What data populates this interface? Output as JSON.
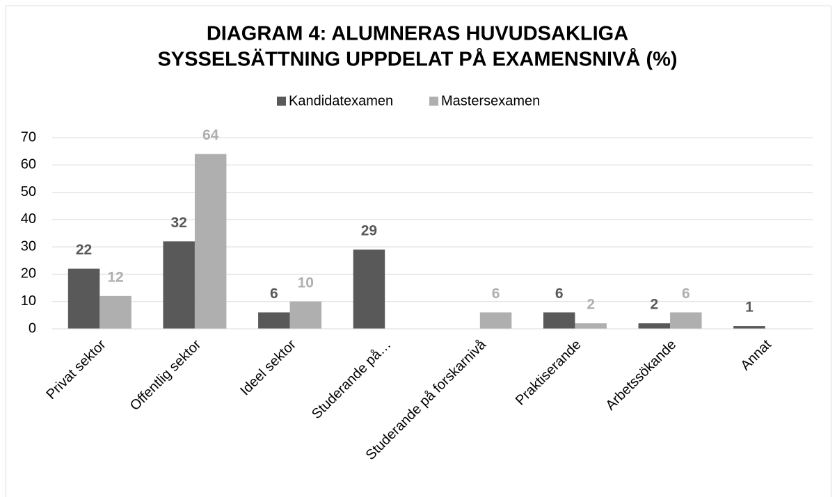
{
  "chart_data": {
    "type": "bar",
    "title": [
      "DIAGRAM 4: ALUMNERAS HUVUDSAKLIGA",
      "SYSSELSÄTTNING UPPDELAT PÅ EXAMENSNIVÅ (%)"
    ],
    "categories": [
      "Privat sektor",
      "Offentlig sektor",
      "Ideel sektor",
      "Studerande på…",
      "Studerande på forskarnivå",
      "Praktiserande",
      "Arbetssökande",
      "Annat"
    ],
    "series": [
      {
        "name": "Kandidatexamen",
        "color": "#595959",
        "values": [
          22,
          32,
          6,
          29,
          null,
          6,
          2,
          1
        ]
      },
      {
        "name": "Mastersexamen",
        "color": "#afafaf",
        "values": [
          12,
          64,
          10,
          null,
          6,
          2,
          6,
          null
        ]
      }
    ],
    "ylim": [
      0,
      70
    ],
    "yticks": [
      0,
      10,
      20,
      30,
      40,
      50,
      60,
      70
    ],
    "grid": true,
    "legend": "top"
  }
}
